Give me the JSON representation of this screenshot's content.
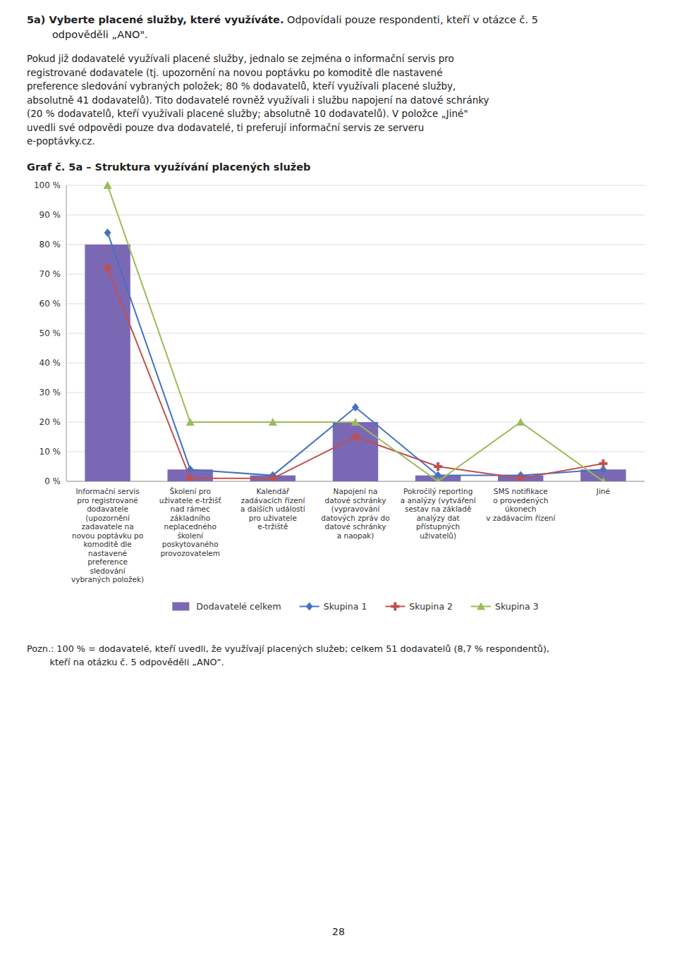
{
  "page": {
    "heading_bold": "5a) Vyberte placené služby, které využíváte.",
    "heading_lines": [
      " Odpovídali pouze respondenti, kteří v otázce č. 5",
      "odpověděli „ANO\"."
    ],
    "paragraph": "Pokud již dodavatelé využívali placené služby, jednalo se zejména o informační servis pro\nregistrované dodavatele (tj. upozornění na novou poptávku po komoditě dle nastavené\npreference sledování vybraných položek; 80 % dodavatelů, kteří využívali placené služby,\nabsolutně 41 dodavatelů). Tito dodavatelé rovněž využívali i službu napojení na datové schránky\n(20 % dodavatelů, kteří využívali placené služby; absolutně 10 dodavatelů). V položce „Jiné\"\nuvedli své odpovědi pouze dva dodavatelé, ti preferují informační servis ze serveru\ne-poptávky.cz.",
    "note": "Pozn.: 100 % = dodavatelé, kteří uvedli, že využívají placených služeb; celkem 51 dodavatelů (8,7 % respondentů),\n        kteří na otázku č. 5 odpověděli „ANO“.",
    "page_number": "28"
  },
  "chart_data": {
    "type": "bar",
    "title": "Graf č. 5a – Struktura využívání placených služeb",
    "categories": [
      "Informační servis\npro registrované\ndodavatele\n(upozornění\nzadavatele na\nnovou poptávku po\nkomoditě dle\nnastavené\npreference\nsledování\nvybraných položek)",
      "Školení pro\nuživatele e-tržišť\nnad rámec\nzákladního\nneplacedného\nškolení\nposkytovaného\nprovozovatelem",
      "Kalendář\nzadávacích řízení\na dalších událostí\npro uživatele\ne-tržiště",
      "Napojení na\ndatové schránky\n(vypravování\ndatových zpráv do\ndatové schránky\na naopak)",
      "Pokročilý reporting\na analýzy (vytváření\nsestav na základě\nanalýzy dat\npřístupných\nuživatelů)",
      "SMS notifikace\no provedených\núkonech\nv zadávacím řízení",
      "Jiné"
    ],
    "series": [
      {
        "name": "Dodavatelé celkem",
        "type": "bar",
        "color": "#7b68b5",
        "values": [
          80,
          4,
          2,
          20,
          2,
          2,
          4
        ]
      },
      {
        "name": "Skupina 1",
        "type": "line",
        "color": "#4472c4",
        "marker": "diamond",
        "values": [
          84,
          4,
          2,
          25,
          2,
          2,
          4
        ]
      },
      {
        "name": "Skupina 2",
        "type": "line",
        "color": "#c0504d",
        "marker": "plus",
        "values": [
          72,
          1,
          1,
          15,
          5,
          1,
          6
        ]
      },
      {
        "name": "Skupina 3",
        "type": "line",
        "color": "#9bbb59",
        "marker": "triangle",
        "values": [
          100,
          20,
          20,
          20,
          0,
          20,
          0
        ]
      }
    ],
    "ylim": [
      0,
      100
    ],
    "yticks": [
      {
        "value": 0,
        "label": "0 %"
      },
      {
        "value": 10,
        "label": "10 %"
      },
      {
        "value": 20,
        "label": "20 %"
      },
      {
        "value": 30,
        "label": "30 %"
      },
      {
        "value": 40,
        "label": "40 %"
      },
      {
        "value": 50,
        "label": "50 %"
      },
      {
        "value": 60,
        "label": "60 %"
      },
      {
        "value": 70,
        "label": "70 %"
      },
      {
        "value": 80,
        "label": "80 %"
      },
      {
        "value": 90,
        "label": "90 %"
      },
      {
        "value": 100,
        "label": "100 %"
      }
    ],
    "grid": true,
    "legend": "bottom"
  }
}
